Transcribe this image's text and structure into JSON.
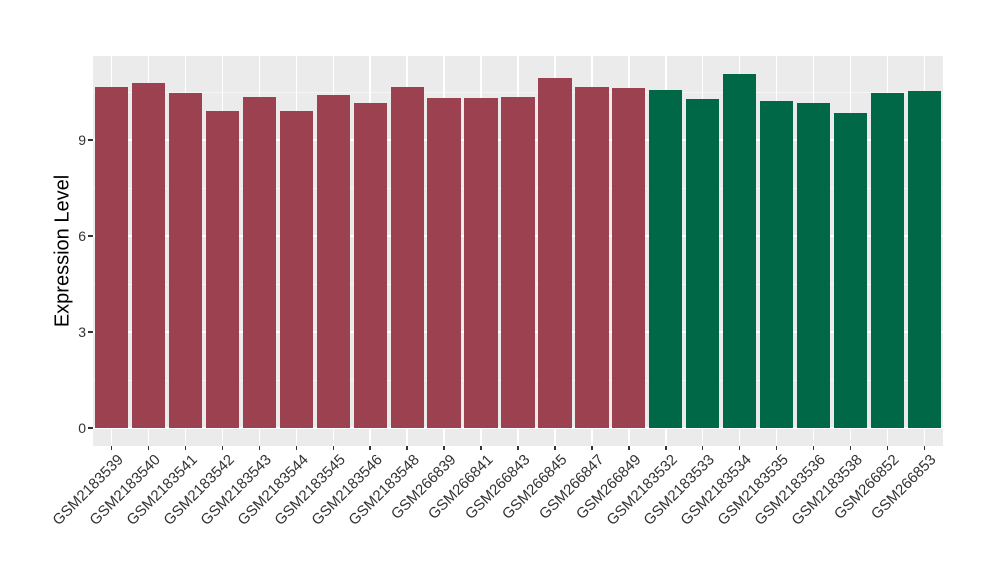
{
  "style": {
    "background": "#FFFFFF",
    "panel_background": "#EBEBEB",
    "grid_major_color": "#FFFFFF",
    "grid_minor_color": "rgba(255,255,255,0.55)",
    "axis_text_color": "#333333",
    "axis_title_color": "#000000",
    "tick_mark_color": "#333333",
    "group1_bar_color": "#9B4150",
    "group2_bar_color": "#006847"
  },
  "chart_data": {
    "type": "bar",
    "title": "",
    "xlabel": "",
    "ylabel": "Expression Level",
    "categories": [
      "GSM2183539",
      "GSM2183540",
      "GSM2183541",
      "GSM2183542",
      "GSM2183543",
      "GSM2183544",
      "GSM2183545",
      "GSM2183546",
      "GSM2183548",
      "GSM266839",
      "GSM266841",
      "GSM266843",
      "GSM266845",
      "GSM266847",
      "GSM266849",
      "GSM2183532",
      "GSM2183533",
      "GSM2183534",
      "GSM2183535",
      "GSM2183536",
      "GSM2183538",
      "GSM266852",
      "GSM266853"
    ],
    "values": [
      10.65,
      10.78,
      10.48,
      9.92,
      10.35,
      9.92,
      10.42,
      10.15,
      10.65,
      10.32,
      10.32,
      10.35,
      10.95,
      10.67,
      10.64,
      10.56,
      10.27,
      11.06,
      10.22,
      10.15,
      9.83,
      10.46,
      10.54
    ],
    "bar_colors": [
      "#9B4150",
      "#9B4150",
      "#9B4150",
      "#9B4150",
      "#9B4150",
      "#9B4150",
      "#9B4150",
      "#9B4150",
      "#9B4150",
      "#9B4150",
      "#9B4150",
      "#9B4150",
      "#9B4150",
      "#9B4150",
      "#9B4150",
      "#006847",
      "#006847",
      "#006847",
      "#006847",
      "#006847",
      "#006847",
      "#006847",
      "#006847"
    ],
    "groups": [
      {
        "color": "#9B4150",
        "first_category": "GSM2183539",
        "last_category": "GSM266849",
        "count": 15
      },
      {
        "color": "#006847",
        "first_category": "GSM2183532",
        "last_category": "GSM266853",
        "count": 8
      }
    ],
    "yticks": [
      0,
      3,
      6,
      9
    ],
    "minor_yticks": [
      1.5,
      4.5,
      7.5,
      10.5
    ],
    "ylim": [
      -0.56,
      11.63
    ],
    "grid": true,
    "legend_position": "none",
    "x_tick_rotation_deg": 45,
    "bar_width_fraction": 0.9
  }
}
